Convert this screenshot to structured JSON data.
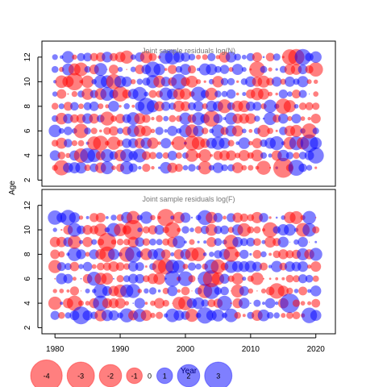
{
  "figure": {
    "ylabel": "Age",
    "xlabel": "Year",
    "colors": {
      "positive": "#0000ff",
      "negative": "#ff0000",
      "frame": "#000000",
      "title_text": "#777777"
    }
  },
  "chart_data": [
    {
      "type": "scatter",
      "title": "Joint sample residuals log(N)",
      "ylabel": "Age",
      "xlabel": "",
      "xlim": [
        1978,
        2023
      ],
      "ylim": [
        1.5,
        13.3
      ],
      "yticks": [
        2,
        4,
        6,
        8,
        10,
        12
      ],
      "xticks": [],
      "ages": [
        3,
        4,
        5,
        6,
        7,
        8,
        9,
        10,
        11,
        12
      ],
      "years": [
        1980,
        2020
      ],
      "residuals": "bubble per age x year; red = negative, blue = positive, area proportional to |residual|"
    },
    {
      "type": "scatter",
      "title": "Joint sample residuals log(F)",
      "ylabel": "Age",
      "xlabel": "Year",
      "xlim": [
        1978,
        2023
      ],
      "ylim": [
        1.5,
        13.3
      ],
      "yticks": [
        2,
        4,
        6,
        8,
        10,
        12
      ],
      "xticks": [
        1980,
        1990,
        2000,
        2010,
        2020
      ],
      "ages": [
        3,
        4,
        5,
        6,
        7,
        8,
        9,
        10,
        11
      ],
      "years": [
        1980,
        2020
      ],
      "residuals": "bubble per age x year; red = negative, blue = positive, area proportional to |residual|"
    }
  ],
  "legend": {
    "entries": [
      {
        "label": "-4",
        "value": -4
      },
      {
        "label": "-3",
        "value": -3
      },
      {
        "label": "-2",
        "value": -2
      },
      {
        "label": "-1",
        "value": -1
      },
      {
        "label": "0",
        "value": 0
      },
      {
        "label": "1",
        "value": 1
      },
      {
        "label": "2",
        "value": 2
      },
      {
        "label": "3",
        "value": 3
      }
    ]
  }
}
